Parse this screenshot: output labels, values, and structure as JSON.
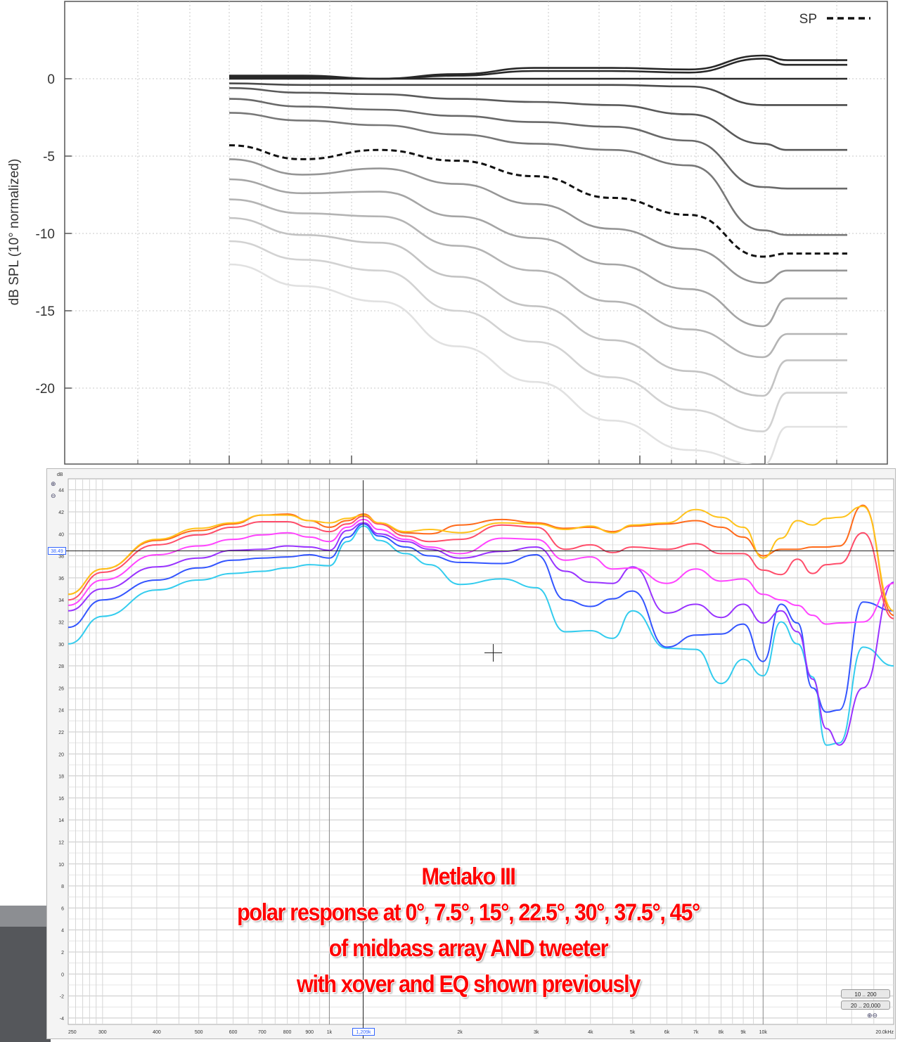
{
  "top_chart": {
    "ylabel": "dB SPL (10° normalized)",
    "legend": {
      "label": "SP",
      "style": "dashed"
    },
    "y_ticks": [
      "0",
      "-5",
      "-10",
      "-15",
      "-20"
    ]
  },
  "bottom_chart": {
    "y_unit": "dB",
    "y_ticks": [
      "44",
      "42",
      "40",
      "38",
      "36",
      "34",
      "32",
      "30",
      "28",
      "26",
      "24",
      "22",
      "20",
      "18",
      "16",
      "14",
      "12",
      "10",
      "8",
      "6",
      "4",
      "2",
      "0",
      "-2",
      "-4"
    ],
    "x_ticks": [
      "250",
      "300",
      "400",
      "500",
      "600",
      "700",
      "800",
      "900",
      "1k",
      "2k",
      "3k",
      "4k",
      "5k",
      "6k",
      "7k",
      "8k",
      "9k",
      "10k",
      "20.0kHz"
    ],
    "cursor_db": "38.49",
    "cursor_freq": "1,209k",
    "range_buttons": [
      "10 .. 200",
      "20 .. 20,000"
    ]
  },
  "caption": {
    "line1": "Metlako III",
    "line2": "polar response at 0°, 7.5°, 15°, 22.5°, 30°, 37.5°, 45°",
    "line3": "of midbass array AND tweeter",
    "line4": "with xover and EQ shown previously"
  },
  "colors": {
    "caption": "#ff0000",
    "curves_bottom": [
      "#ffc21a",
      "#ff6a1a",
      "#ff4d6a",
      "#ff44ff",
      "#9933ff",
      "#3355ff",
      "#33ccee"
    ]
  },
  "chart_data": [
    {
      "type": "line",
      "ylabel": "dB SPL (10° normalized)",
      "ylim": [
        -25,
        4.5
      ],
      "x_scale": "log",
      "grid": true,
      "legend_position": "top-right",
      "x": [
        1,
        1.5,
        2,
        3,
        4,
        5,
        6,
        7,
        8,
        9,
        10,
        11,
        12
      ],
      "series": [
        {
          "values": [
            0.2,
            0.2,
            0.0,
            0.3,
            0.7,
            0.7,
            0.6,
            1.5,
            1.2,
            1.2,
            1.2,
            1.2,
            1.2
          ]
        },
        {
          "values": [
            0.1,
            0.1,
            0.0,
            0.2,
            0.5,
            0.5,
            0.4,
            1.3,
            0.9,
            0.9,
            0.9,
            0.9,
            0.9
          ]
        },
        {
          "values": [
            0.0,
            0.0,
            0.0,
            0.0,
            0.0,
            0.0,
            0.0,
            0.0,
            0.0,
            0.0,
            0.0,
            0.0,
            0.0
          ]
        },
        {
          "values": [
            -0.3,
            -0.4,
            -0.4,
            -0.4,
            -0.4,
            -0.4,
            -0.5,
            -1.7,
            -1.7,
            -1.7,
            -1.7,
            -1.7,
            -1.7
          ]
        },
        {
          "values": [
            -0.6,
            -0.9,
            -1.0,
            -1.3,
            -1.5,
            -1.7,
            -2.3,
            -4.2,
            -4.6,
            -4.6,
            -4.6,
            -4.6,
            -4.6
          ]
        },
        {
          "values": [
            -1.3,
            -1.8,
            -2.0,
            -2.4,
            -2.8,
            -3.1,
            -4.0,
            -7.0,
            -7.1,
            -7.1,
            -7.1,
            -7.1,
            -7.1
          ]
        },
        {
          "values": [
            -2.2,
            -2.7,
            -3.0,
            -3.6,
            -4.2,
            -4.6,
            -5.6,
            -9.8,
            -10.1,
            -10.1,
            -10.1,
            -10.1,
            -10.1
          ]
        },
        {
          "name": "SP",
          "values": [
            -4.3,
            -5.2,
            -4.6,
            -5.3,
            -6.3,
            -7.7,
            -8.8,
            -11.5,
            -11.3,
            -11.3,
            -11.3,
            -11.3,
            -11.3
          ]
        },
        {
          "values": [
            -5.2,
            -6.2,
            -5.8,
            -6.8,
            -8.1,
            -9.7,
            -11.0,
            -13.2,
            -12.4,
            -12.4,
            -12.4,
            -12.4,
            -12.4
          ]
        },
        {
          "values": [
            -6.5,
            -7.4,
            -7.3,
            -8.9,
            -10.3,
            -12.0,
            -13.6,
            -16.0,
            -14.2,
            -14.2,
            -14.2,
            -14.2,
            -14.2
          ]
        },
        {
          "values": [
            -7.8,
            -8.7,
            -8.9,
            -10.8,
            -12.4,
            -14.4,
            -16.2,
            -18.0,
            -16.5,
            -16.5,
            -16.5,
            -16.5,
            -16.5
          ]
        },
        {
          "values": [
            -9.0,
            -10.1,
            -10.6,
            -12.8,
            -14.7,
            -16.9,
            -18.9,
            -20.5,
            -18.2,
            -18.2,
            -18.2,
            -18.2,
            -18.2
          ]
        },
        {
          "values": [
            -10.5,
            -11.7,
            -12.4,
            -15.0,
            -17.0,
            -19.3,
            -21.4,
            -22.8,
            -20.3,
            -20.3,
            -20.3,
            -20.3,
            -20.3
          ]
        },
        {
          "values": [
            -12.0,
            -13.4,
            -14.4,
            -17.3,
            -19.6,
            -22.1,
            -24.0,
            -25.0,
            -22.5,
            -22.5,
            -22.5,
            -22.5,
            -22.5
          ]
        }
      ]
    },
    {
      "type": "line",
      "ylabel": "dB",
      "ylim": [
        -4.5,
        45
      ],
      "xlim": [
        250,
        20000
      ],
      "x_scale": "log",
      "grid": true,
      "x": [
        250,
        300,
        400,
        500,
        600,
        700,
        800,
        900,
        1000,
        1100,
        1200,
        1300,
        1500,
        1700,
        2000,
        2500,
        3000,
        3500,
        4000,
        4500,
        5000,
        6000,
        7000,
        8000,
        9000,
        10000,
        11000,
        12000,
        13000,
        14000,
        15000,
        17000,
        20000
      ],
      "series": [
        {
          "values": [
            34.5,
            36.8,
            39.5,
            40.5,
            41.0,
            41.7,
            41.7,
            41.2,
            41.0,
            41.4,
            41.7,
            41.0,
            40.2,
            40.4,
            40.1,
            41.0,
            40.9,
            40.4,
            40.7,
            40.1,
            40.8,
            41.0,
            42.2,
            41.5,
            40.6,
            37.8,
            39.6,
            41.2,
            40.8,
            41.4,
            41.5,
            42.5,
            33.0
          ]
        },
        {
          "values": [
            34.5,
            36.8,
            39.4,
            40.3,
            40.9,
            41.7,
            41.8,
            41.2,
            40.6,
            41.2,
            41.8,
            41.0,
            40.1,
            40.0,
            40.8,
            41.3,
            41.0,
            40.5,
            40.6,
            40.2,
            40.7,
            40.9,
            41.2,
            40.6,
            39.7,
            38.0,
            38.6,
            38.6,
            38.8,
            38.8,
            38.9,
            42.6,
            32.6
          ]
        },
        {
          "values": [
            34.0,
            36.5,
            39.0,
            39.9,
            40.6,
            41.1,
            41.1,
            40.6,
            40.2,
            40.9,
            41.6,
            40.9,
            39.8,
            39.3,
            39.5,
            40.8,
            40.6,
            38.6,
            39.0,
            38.3,
            38.8,
            38.6,
            39.1,
            38.2,
            38.2,
            36.7,
            36.3,
            37.7,
            36.4,
            37.2,
            37.3,
            40.1,
            32.3
          ]
        },
        {
          "values": [
            33.5,
            35.8,
            38.1,
            38.9,
            39.5,
            39.9,
            40.1,
            39.7,
            39.3,
            40.6,
            41.3,
            40.4,
            39.5,
            38.8,
            38.2,
            39.6,
            39.5,
            37.6,
            37.9,
            36.8,
            36.9,
            35.5,
            36.8,
            35.7,
            35.9,
            34.5,
            34.0,
            33.5,
            32.6,
            31.8,
            31.9,
            32.0,
            35.5
          ]
        },
        {
          "values": [
            33.0,
            35.0,
            37.0,
            37.8,
            38.5,
            38.6,
            38.9,
            38.8,
            38.5,
            40.3,
            41.0,
            40.0,
            39.3,
            38.6,
            37.8,
            38.4,
            38.8,
            36.6,
            35.6,
            35.5,
            37.0,
            32.8,
            33.6,
            32.4,
            33.6,
            31.9,
            33.0,
            31.1,
            26.8,
            22.3,
            20.8,
            26.0,
            35.6
          ]
        },
        {
          "values": [
            31.5,
            34.0,
            35.8,
            36.9,
            37.6,
            37.8,
            37.9,
            38.1,
            37.8,
            39.7,
            40.9,
            39.8,
            38.8,
            38.0,
            37.4,
            37.3,
            38.1,
            34.0,
            33.4,
            34.1,
            34.8,
            29.7,
            30.8,
            30.9,
            31.8,
            28.4,
            33.6,
            31.9,
            26.0,
            23.8,
            24.0,
            33.8,
            33.0
          ]
        },
        {
          "values": [
            30.0,
            32.5,
            34.9,
            35.8,
            36.4,
            36.6,
            36.9,
            37.2,
            37.1,
            39.3,
            40.7,
            39.4,
            38.2,
            37.2,
            35.4,
            35.9,
            35.1,
            31.1,
            31.2,
            30.5,
            33.0,
            29.6,
            29.5,
            26.4,
            28.6,
            27.1,
            32.0,
            30.0,
            27.0,
            20.8,
            21.0,
            29.7,
            28.0
          ]
        }
      ]
    }
  ]
}
